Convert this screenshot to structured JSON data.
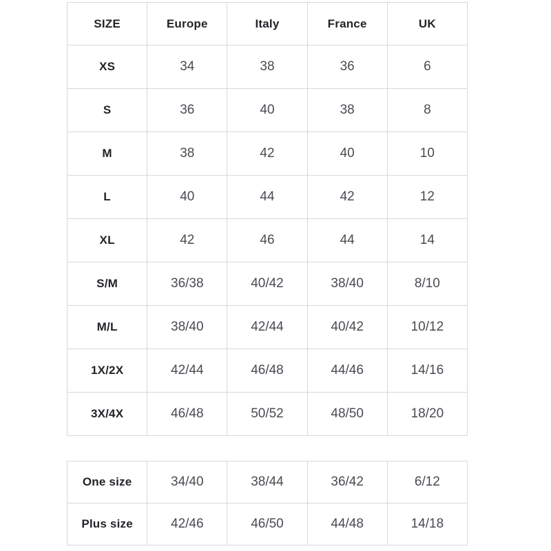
{
  "colors": {
    "background": "#ffffff",
    "border": "#d8d8d8",
    "header_text": "#232329",
    "value_text": "#4a4a52"
  },
  "chart_data": [
    {
      "type": "table",
      "title": "",
      "columns": [
        "SIZE",
        "Europe",
        "Italy",
        "France",
        "UK"
      ],
      "rows": [
        [
          "XS",
          "34",
          "38",
          "36",
          "6"
        ],
        [
          "S",
          "36",
          "40",
          "38",
          "8"
        ],
        [
          "M",
          "38",
          "42",
          "40",
          "10"
        ],
        [
          "L",
          "40",
          "44",
          "42",
          "12"
        ],
        [
          "XL",
          "42",
          "46",
          "44",
          "14"
        ],
        [
          "S/M",
          "36/38",
          "40/42",
          "38/40",
          "8/10"
        ],
        [
          "M/L",
          "38/40",
          "42/44",
          "40/42",
          "10/12"
        ],
        [
          "1X/2X",
          "42/44",
          "46/48",
          "44/46",
          "14/16"
        ],
        [
          "3X/4X",
          "46/48",
          "50/52",
          "48/50",
          "18/20"
        ]
      ]
    },
    {
      "type": "table",
      "title": "",
      "rows": [
        [
          "One size",
          "34/40",
          "38/44",
          "36/42",
          "6/12"
        ],
        [
          "Plus size",
          "42/46",
          "46/50",
          "44/48",
          "14/18"
        ]
      ]
    }
  ]
}
